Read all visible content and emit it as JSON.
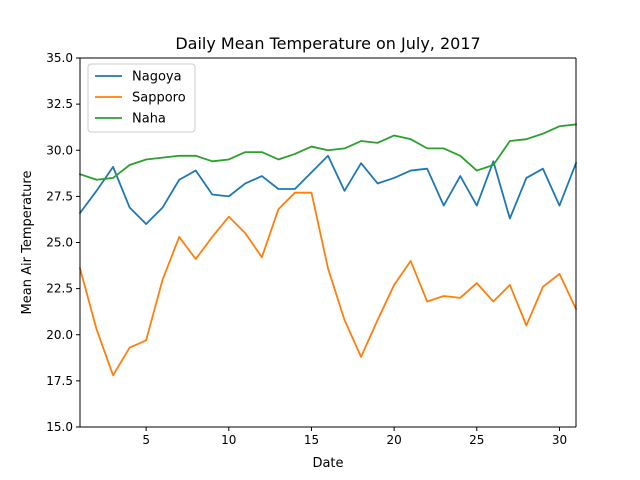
{
  "chart_data": {
    "type": "line",
    "title": "Daily Mean Temperature on July, 2017",
    "xlabel": "Date",
    "ylabel": "Mean Air Temperature",
    "xlim": [
      1,
      31
    ],
    "ylim": [
      15.0,
      35.0
    ],
    "xticks": [
      5,
      10,
      15,
      20,
      25,
      30
    ],
    "xtick_labels": [
      "5",
      "10",
      "15",
      "20",
      "25",
      "30"
    ],
    "yticks": [
      15.0,
      17.5,
      20.0,
      22.5,
      25.0,
      27.5,
      30.0,
      32.5,
      35.0
    ],
    "ytick_labels": [
      "15.0",
      "17.5",
      "20.0",
      "22.5",
      "25.0",
      "27.5",
      "30.0",
      "32.5",
      "35.0"
    ],
    "grid": false,
    "legend_position": "top-left",
    "x": [
      1,
      2,
      3,
      4,
      5,
      6,
      7,
      8,
      9,
      10,
      11,
      12,
      13,
      14,
      15,
      16,
      17,
      18,
      19,
      20,
      21,
      22,
      23,
      24,
      25,
      26,
      27,
      28,
      29,
      30,
      31
    ],
    "series": [
      {
        "name": "Nagoya",
        "color": "#1f77b4",
        "values": [
          26.6,
          27.8,
          29.1,
          26.9,
          26.0,
          26.9,
          28.4,
          28.9,
          27.6,
          27.5,
          28.2,
          28.6,
          27.9,
          27.9,
          28.8,
          29.7,
          27.8,
          29.3,
          28.2,
          28.5,
          28.9,
          29.0,
          27.0,
          28.6,
          27.0,
          29.4,
          26.3,
          28.5,
          29.0,
          27.0,
          29.3
        ]
      },
      {
        "name": "Sapporo",
        "color": "#ff7f0e",
        "values": [
          23.6,
          20.3,
          17.8,
          19.3,
          19.7,
          23.0,
          25.3,
          24.1,
          25.3,
          26.4,
          25.5,
          24.2,
          26.8,
          27.7,
          27.7,
          23.6,
          20.8,
          18.8,
          20.8,
          22.7,
          24.0,
          21.8,
          22.1,
          22.0,
          22.8,
          21.8,
          22.7,
          20.5,
          22.6,
          23.3,
          21.4
        ]
      },
      {
        "name": "Naha",
        "color": "#2ca02c",
        "values": [
          28.7,
          28.4,
          28.5,
          29.2,
          29.5,
          29.6,
          29.7,
          29.7,
          29.4,
          29.5,
          29.9,
          29.9,
          29.5,
          29.8,
          30.2,
          30.0,
          30.1,
          30.5,
          30.4,
          30.8,
          30.6,
          30.1,
          30.1,
          29.7,
          28.9,
          29.2,
          30.5,
          30.6,
          30.9,
          31.3,
          31.4
        ]
      }
    ]
  }
}
